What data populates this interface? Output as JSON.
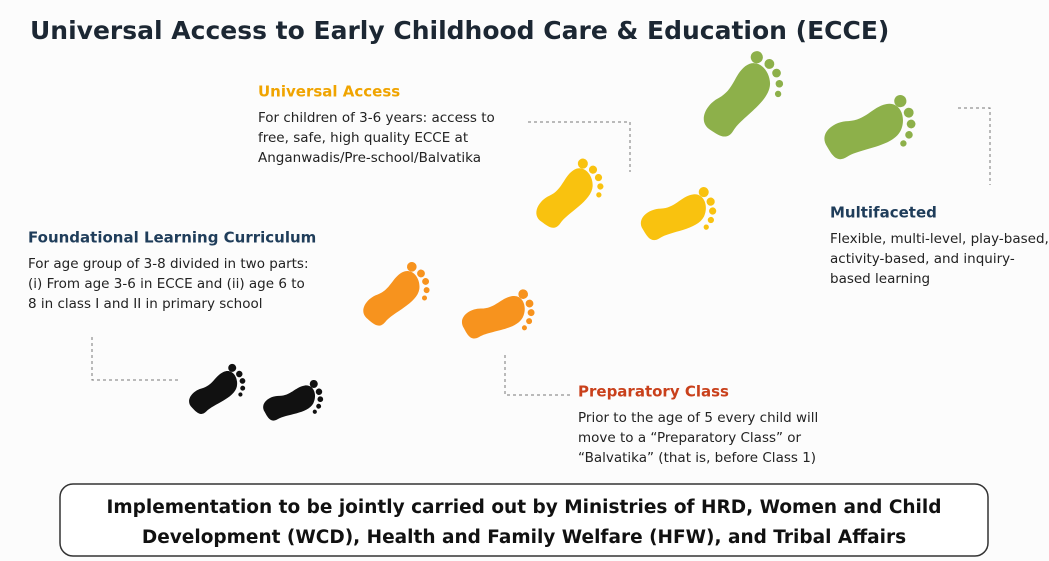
{
  "header": {
    "title": "Universal Access to Early Childhood Care & Education (ECCE)"
  },
  "steps": [
    {
      "heading": "Foundational  Learning Curriculum",
      "lines": [
        "For age group of 3-8 divided in two parts:",
        "(i) From age 3-6 in ECCE and (ii) age 6 to",
        "8 in class I and II in primary school"
      ]
    },
    {
      "heading": "Preparatory Class",
      "lines": [
        "Prior to the age of 5 every child will",
        "move to a “Preparatory Class” or",
        "“Balvatika” (that is, before Class 1)"
      ]
    },
    {
      "heading": "Universal Access",
      "lines": [
        "For children of 3-6 years: access to",
        "free, safe, high quality ECCE at",
        "Anganwadis/Pre-school/Balvatika"
      ]
    },
    {
      "heading": "Multifaceted",
      "lines": [
        "Flexible, multi-level, play-based,",
        "activity-based, and inquiry-",
        "based learning"
      ]
    }
  ],
  "footer": {
    "lines": [
      "Implementation to be jointly carried out by Ministries of HRD, Women and Child",
      "Development (WCD), Health and Family Welfare (HFW), and Tribal Affairs"
    ]
  }
}
